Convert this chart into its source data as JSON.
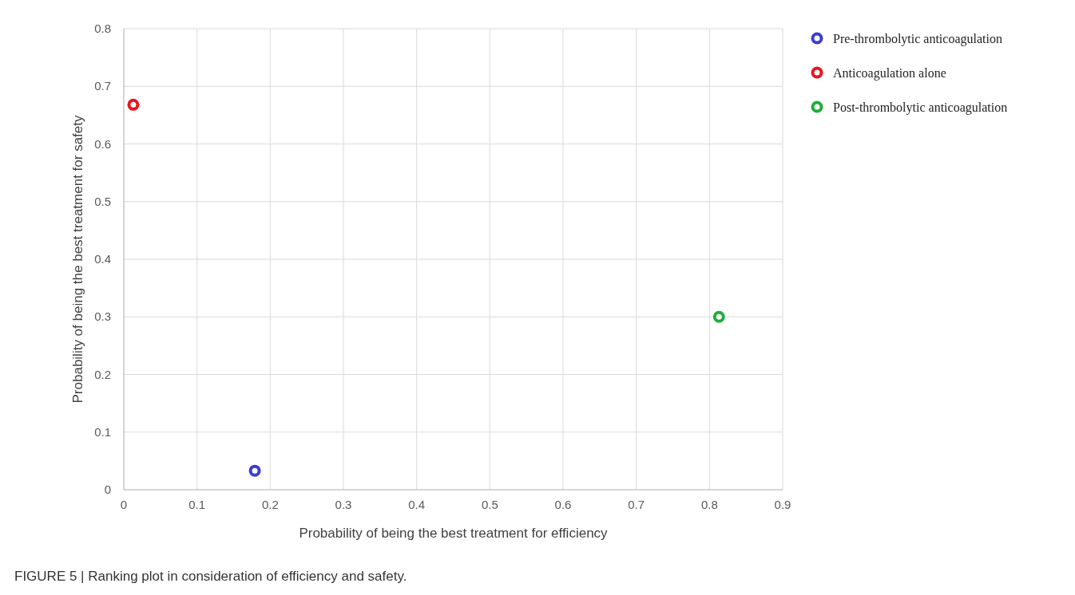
{
  "chart_data": {
    "type": "scatter",
    "xlabel": "Probability of being the best treatment for efficiency",
    "ylabel": "Probability of being the best treatment for safety",
    "xlim": [
      0,
      0.9
    ],
    "xticks": [
      0,
      0.1,
      0.2,
      0.3,
      0.4,
      0.5,
      0.6,
      0.7,
      0.8,
      0.9
    ],
    "ylim": [
      0,
      0.8
    ],
    "yticks": [
      0,
      0.1,
      0.2,
      0.3,
      0.4,
      0.5,
      0.6,
      0.7,
      0.8
    ],
    "grid": true,
    "legend": "top right",
    "marker": "circle",
    "series": [
      {
        "name": "Pre-thrombolytic anticoagulation",
        "color": "#3a3fd0",
        "x": [
          0.179
        ],
        "values": [
          0.033
        ]
      },
      {
        "name": "Anticoagulation alone",
        "color": "#e8141e",
        "x": [
          0.013
        ],
        "values": [
          0.668
        ]
      },
      {
        "name": "Post-thrombolytic anticoagulation",
        "color": "#1fae3c",
        "x": [
          0.813
        ],
        "values": [
          0.3
        ]
      }
    ],
    "annotations": [
      "FIGURE 5 | Ranking plot in consideration of efficiency and safety."
    ]
  }
}
